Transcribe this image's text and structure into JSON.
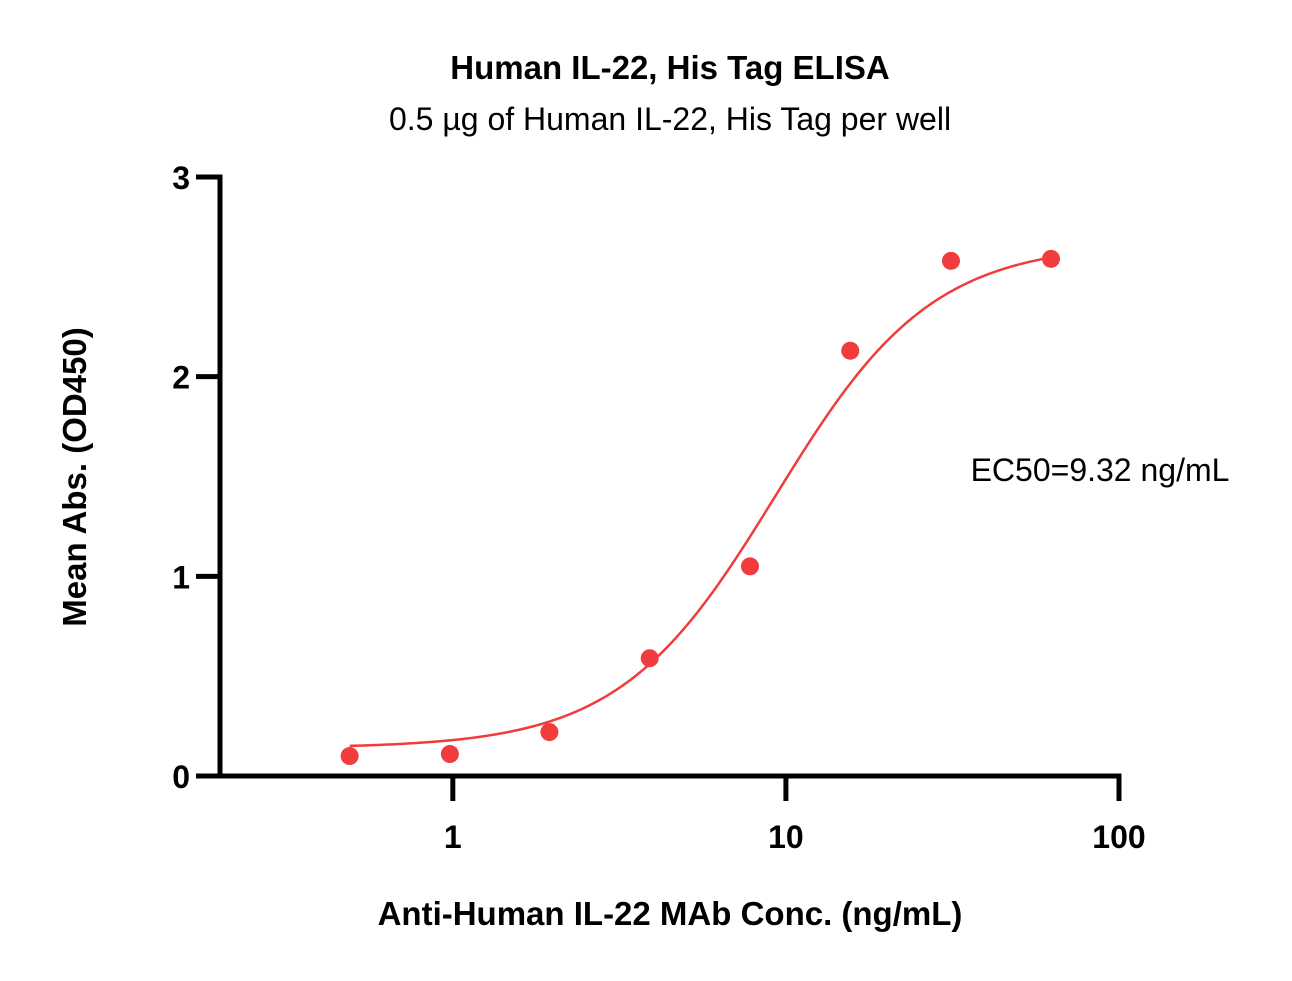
{
  "chart_data": {
    "type": "scatter",
    "title": "Human IL-22, His Tag ELISA",
    "subtitle": "0.5 µg of Human IL-22, His Tag per well",
    "xlabel": "Anti-Human IL-22 MAb Conc. (ng/mL)",
    "ylabel": "Mean Abs. (OD450)",
    "x_scale": "log",
    "xlim": [
      0.2,
      100
    ],
    "ylim": [
      0,
      3
    ],
    "x_ticks": [
      1,
      10,
      100
    ],
    "x_tick_labels": [
      "1",
      "10",
      "100"
    ],
    "y_ticks": [
      0,
      1,
      2,
      3
    ],
    "y_tick_labels": [
      "0",
      "1",
      "2",
      "3"
    ],
    "grid": false,
    "annotation": "EC50=9.32 ng/mL",
    "color": "#F03C3C",
    "series": [
      {
        "points": [
          {
            "x": 0.49,
            "y": 0.1
          },
          {
            "x": 0.98,
            "y": 0.11
          },
          {
            "x": 1.95,
            "y": 0.22
          },
          {
            "x": 3.9,
            "y": 0.59
          },
          {
            "x": 7.8,
            "y": 1.05
          },
          {
            "x": 15.6,
            "y": 2.13
          },
          {
            "x": 31.3,
            "y": 2.58
          },
          {
            "x": 62.5,
            "y": 2.59
          }
        ]
      }
    ],
    "fit": {
      "model": "4PL",
      "bottom": 0.14,
      "top": 2.67,
      "ec50": 9.32,
      "hill": 1.85,
      "x_range": [
        0.49,
        62.5
      ]
    }
  }
}
